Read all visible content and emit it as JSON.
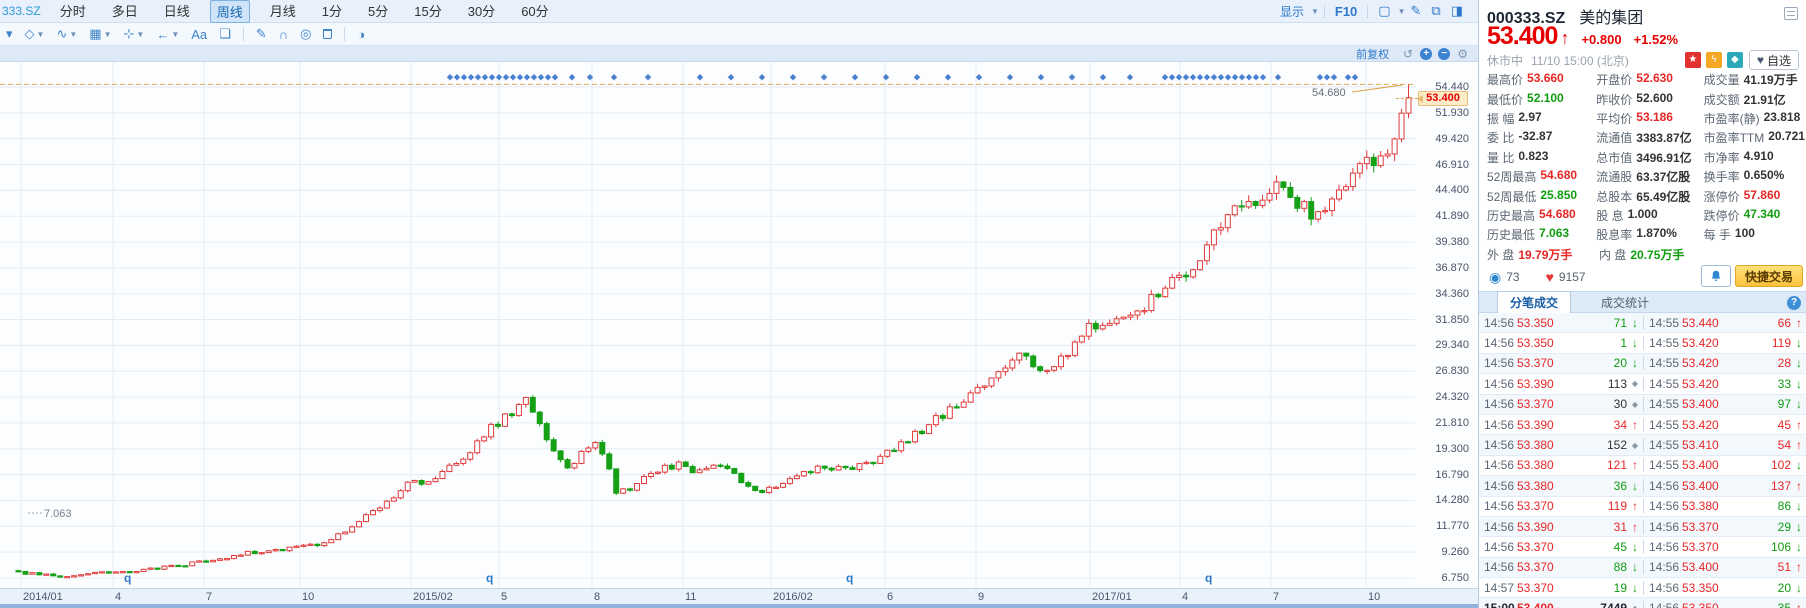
{
  "toolbar": {
    "code": "333.SZ",
    "periods": [
      {
        "label": "分时",
        "active": false
      },
      {
        "label": "多日",
        "active": false
      },
      {
        "label": "日线",
        "active": false
      },
      {
        "label": "周线",
        "active": true
      },
      {
        "label": "月线",
        "active": false
      },
      {
        "label": "1分",
        "active": false
      },
      {
        "label": "5分",
        "active": false
      },
      {
        "label": "15分",
        "active": false
      },
      {
        "label": "30分",
        "active": false
      },
      {
        "label": "60分",
        "active": false
      }
    ],
    "right": {
      "display_label": "显示",
      "f10_label": "F10"
    }
  },
  "draw_toolbar": {
    "items": [
      {
        "n": "caret-down-icon"
      },
      {
        "n": "polygon-tool-icon",
        "c": true
      },
      {
        "n": "wave-tool-icon",
        "c": true
      },
      {
        "n": "chart-box-icon",
        "c": true
      },
      {
        "n": "crosshair-icon",
        "c": true
      },
      {
        "n": "arrow-left-icon",
        "c": true
      },
      {
        "n": "text-tool-icon"
      },
      {
        "n": "comment-icon"
      },
      {
        "sep": true
      },
      {
        "n": "pen-icon"
      },
      {
        "n": "magnet-icon"
      },
      {
        "n": "target-icon"
      },
      {
        "n": "trash-icon"
      },
      {
        "sep": true
      },
      {
        "n": "contrast-icon"
      }
    ]
  },
  "chart": {
    "adjust_label": "前复权",
    "price_tag": "53.400",
    "high_line_label": "54.680",
    "low_label": "7.063",
    "q_marker_label": "q",
    "q_marker_x": [
      128,
      490,
      850,
      1209
    ],
    "y_axis_labels": [
      "54.440",
      "51.930",
      "49.420",
      "46.910",
      "44.400",
      "41.890",
      "39.380",
      "36.870",
      "34.360",
      "31.850",
      "29.340",
      "26.830",
      "24.320",
      "21.810",
      "19.300",
      "16.790",
      "14.280",
      "11.770",
      "9.260",
      "6.750"
    ],
    "x_axis_ticks": [
      {
        "label": "2014/01",
        "x": 21
      },
      {
        "label": "4",
        "x": 113
      },
      {
        "label": "7",
        "x": 204
      },
      {
        "label": "10",
        "x": 300
      },
      {
        "label": "2015/02",
        "x": 411
      },
      {
        "label": "5",
        "x": 499
      },
      {
        "label": "8",
        "x": 592
      },
      {
        "label": "11",
        "x": 683
      },
      {
        "label": "2016/02",
        "x": 771
      },
      {
        "label": "6",
        "x": 885
      },
      {
        "label": "9",
        "x": 976
      },
      {
        "label": "2017/01",
        "x": 1090
      },
      {
        "label": "4",
        "x": 1180
      },
      {
        "label": "7",
        "x": 1271
      },
      {
        "label": "10",
        "x": 1366
      }
    ],
    "diamond_x": [
      450,
      457,
      464,
      471,
      478,
      485,
      492,
      499,
      506,
      513,
      520,
      527,
      534,
      541,
      548,
      555,
      572,
      590,
      614,
      648,
      700,
      731,
      762,
      793,
      824,
      855,
      886,
      917,
      948,
      979,
      1010,
      1041,
      1072,
      1103,
      1130,
      1165,
      1172,
      1179,
      1186,
      1193,
      1200,
      1207,
      1214,
      1221,
      1228,
      1235,
      1242,
      1249,
      1256,
      1263,
      1278,
      1320,
      1327,
      1334,
      1348,
      1355
    ]
  },
  "chart_data": {
    "type": "candlestick",
    "symbol": "000333.SZ",
    "name": "美的集团",
    "period": "weekly",
    "title": "",
    "x_range": [
      "2014/01",
      "2017/11"
    ],
    "price_axis": {
      "min": 6.75,
      "max": 54.44,
      "step": 2.51
    },
    "historic_high": 54.68,
    "historic_low": 7.063,
    "last_close": 53.4,
    "up_color": "#e23b3b",
    "down_color": "#16a016",
    "weekly_close_anchors": [
      [
        0,
        7.3
      ],
      [
        3,
        7.1
      ],
      [
        6,
        6.95
      ],
      [
        9,
        7.05
      ],
      [
        13,
        7.3
      ],
      [
        17,
        7.5
      ],
      [
        21,
        7.8
      ],
      [
        26,
        8.3
      ],
      [
        30,
        8.8
      ],
      [
        34,
        9.3
      ],
      [
        39,
        9.7
      ],
      [
        43,
        10.1
      ],
      [
        46,
        11.0
      ],
      [
        49,
        12.3
      ],
      [
        52,
        13.6
      ],
      [
        54,
        14.8
      ],
      [
        56,
        16.2
      ],
      [
        58,
        15.9
      ],
      [
        60,
        16.4
      ],
      [
        62,
        17.4
      ],
      [
        64,
        18.4
      ],
      [
        66,
        19.8
      ],
      [
        68,
        21.3
      ],
      [
        70,
        22.4
      ],
      [
        72,
        23.4
      ],
      [
        73,
        24.3
      ],
      [
        75,
        21.8
      ],
      [
        77,
        19.4
      ],
      [
        79,
        17.2
      ],
      [
        81,
        18.8
      ],
      [
        83,
        19.8
      ],
      [
        85,
        17.6
      ],
      [
        86,
        14.8
      ],
      [
        88,
        15.6
      ],
      [
        90,
        16.6
      ],
      [
        92,
        17.3
      ],
      [
        95,
        17.8
      ],
      [
        98,
        17.1
      ],
      [
        101,
        17.7
      ],
      [
        104,
        16.1
      ],
      [
        106,
        15.1
      ],
      [
        108,
        15.6
      ],
      [
        111,
        16.4
      ],
      [
        114,
        17.2
      ],
      [
        117,
        17.6
      ],
      [
        120,
        17.4
      ],
      [
        123,
        18.1
      ],
      [
        126,
        19.3
      ],
      [
        129,
        20.6
      ],
      [
        132,
        22.3
      ],
      [
        135,
        23.3
      ],
      [
        138,
        25.3
      ],
      [
        141,
        26.9
      ],
      [
        144,
        28.4
      ],
      [
        146,
        27.4
      ],
      [
        148,
        27.1
      ],
      [
        150,
        28.1
      ],
      [
        152,
        29.4
      ],
      [
        154,
        30.9
      ],
      [
        156,
        31.9
      ],
      [
        158,
        31.4
      ],
      [
        160,
        32.4
      ],
      [
        162,
        33.4
      ],
      [
        164,
        34.4
      ],
      [
        166,
        35.4
      ],
      [
        168,
        36.6
      ],
      [
        170,
        38.1
      ],
      [
        172,
        39.9
      ],
      [
        174,
        41.9
      ],
      [
        176,
        43.4
      ],
      [
        178,
        42.4
      ],
      [
        180,
        44.1
      ],
      [
        182,
        45.4
      ],
      [
        184,
        43.4
      ],
      [
        186,
        41.6
      ],
      [
        188,
        42.6
      ],
      [
        190,
        44.4
      ],
      [
        192,
        46.4
      ],
      [
        194,
        47.9
      ],
      [
        196,
        46.9
      ],
      [
        198,
        49.4
      ],
      [
        199,
        51.9
      ],
      [
        200,
        53.4
      ]
    ]
  },
  "quote": {
    "code": "000333.SZ",
    "name": "美的集团",
    "price": "53.400",
    "arrow": "↑",
    "change": "+0.800",
    "change_pct": "+1.52%",
    "status": "休市中",
    "datetime": "11/10 15:00 (北京)",
    "badges": [
      {
        "icon": "cn-flag-icon",
        "bg": "#e03030"
      },
      {
        "icon": "hot-rank-icon",
        "bg": "#f5a623"
      },
      {
        "icon": "tag-icon",
        "bg": "#2ca8b8"
      }
    ],
    "watch_button": "自选",
    "stats_rows": [
      [
        {
          "l": "最高价",
          "v": "53.660",
          "c": "r"
        },
        {
          "l": "开盘价",
          "v": "52.630",
          "c": "r"
        },
        {
          "l": "成交量",
          "v": "41.19万手",
          "c": "d"
        }
      ],
      [
        {
          "l": "最低价",
          "v": "52.100",
          "c": "g"
        },
        {
          "l": "昨收价",
          "v": "52.600",
          "c": "d"
        },
        {
          "l": "成交额",
          "v": "21.91亿",
          "c": "d"
        }
      ],
      [
        {
          "l": "振 幅",
          "v": "2.97",
          "c": "d"
        },
        {
          "l": "平均价",
          "v": "53.186",
          "c": "r"
        },
        {
          "l": "市盈率(静)",
          "v": "23.818",
          "c": "d"
        }
      ],
      [
        {
          "l": "委 比",
          "v": "-32.87",
          "c": "d"
        },
        {
          "l": "流通值",
          "v": "3383.87亿",
          "c": "d"
        },
        {
          "l": "市盈率TTM",
          "v": "20.721",
          "c": "d"
        }
      ],
      [
        {
          "l": "量 比",
          "v": "0.823",
          "c": "d"
        },
        {
          "l": "总市值",
          "v": "3496.91亿",
          "c": "d"
        },
        {
          "l": "市净率",
          "v": "4.910",
          "c": "d"
        }
      ],
      [
        {
          "l": "52周最高",
          "v": "54.680",
          "c": "r"
        },
        {
          "l": "流通股",
          "v": "63.37亿股",
          "c": "d"
        },
        {
          "l": "换手率",
          "v": "0.650%",
          "c": "d"
        }
      ],
      [
        {
          "l": "52周最低",
          "v": "25.850",
          "c": "g"
        },
        {
          "l": "总股本",
          "v": "65.49亿股",
          "c": "d"
        },
        {
          "l": "涨停价",
          "v": "57.860",
          "c": "r"
        }
      ],
      [
        {
          "l": "历史最高",
          "v": "54.680",
          "c": "r"
        },
        {
          "l": "股 息",
          "v": "1.000",
          "c": "d"
        },
        {
          "l": "跌停价",
          "v": "47.340",
          "c": "g"
        }
      ],
      [
        {
          "l": "历史最低",
          "v": "7.063",
          "c": "g"
        },
        {
          "l": "股息率",
          "v": "1.870%",
          "c": "d"
        },
        {
          "l": "每 手",
          "v": "100",
          "c": "d"
        }
      ],
      [
        {
          "l": "外 盘",
          "v": "19.79万手",
          "c": "r"
        },
        {
          "l": "内 盘",
          "v": "20.75万手",
          "c": "g"
        }
      ]
    ],
    "watch_count": "73",
    "like_count": "9157",
    "quick_trade_label": "快捷交易",
    "tabs": [
      {
        "label": "分笔成交",
        "active": true
      },
      {
        "label": "成交统计",
        "active": false
      }
    ],
    "trades_left": [
      {
        "t": "14:56",
        "p": "53.350",
        "v": "71",
        "a": "d",
        "vc": "g"
      },
      {
        "t": "14:56",
        "p": "53.350",
        "v": "1",
        "a": "d",
        "vc": "g"
      },
      {
        "t": "14:56",
        "p": "53.370",
        "v": "20",
        "a": "d",
        "vc": "g"
      },
      {
        "t": "14:56",
        "p": "53.390",
        "v": "113",
        "a": "f",
        "vc": "d"
      },
      {
        "t": "14:56",
        "p": "53.370",
        "v": "30",
        "a": "f",
        "vc": "d"
      },
      {
        "t": "14:56",
        "p": "53.390",
        "v": "34",
        "a": "u",
        "vc": "r"
      },
      {
        "t": "14:56",
        "p": "53.380",
        "v": "152",
        "a": "f",
        "vc": "d"
      },
      {
        "t": "14:56",
        "p": "53.380",
        "v": "121",
        "a": "u",
        "vc": "r"
      },
      {
        "t": "14:56",
        "p": "53.380",
        "v": "36",
        "a": "d",
        "vc": "g"
      },
      {
        "t": "14:56",
        "p": "53.370",
        "v": "119",
        "a": "u",
        "vc": "r"
      },
      {
        "t": "14:56",
        "p": "53.390",
        "v": "31",
        "a": "u",
        "vc": "r"
      },
      {
        "t": "14:56",
        "p": "53.370",
        "v": "45",
        "a": "d",
        "vc": "g"
      },
      {
        "t": "14:56",
        "p": "53.370",
        "v": "88",
        "a": "d",
        "vc": "g"
      },
      {
        "t": "14:57",
        "p": "53.370",
        "v": "19",
        "a": "d",
        "vc": "g"
      },
      {
        "t": "15:00",
        "p": "53.400",
        "v": "7449",
        "a": "f",
        "vc": "d",
        "b": true
      }
    ],
    "trades_right": [
      {
        "t": "14:55",
        "p": "53.440",
        "v": "66",
        "a": "u",
        "vc": "r"
      },
      {
        "t": "14:55",
        "p": "53.420",
        "v": "119",
        "a": "d",
        "vc": "r"
      },
      {
        "t": "14:55",
        "p": "53.420",
        "v": "28",
        "a": "d",
        "vc": "r"
      },
      {
        "t": "14:55",
        "p": "53.420",
        "v": "33",
        "a": "d",
        "vc": "g"
      },
      {
        "t": "14:55",
        "p": "53.400",
        "v": "97",
        "a": "d",
        "vc": "g"
      },
      {
        "t": "14:55",
        "p": "53.420",
        "v": "45",
        "a": "u",
        "vc": "r"
      },
      {
        "t": "14:55",
        "p": "53.410",
        "v": "54",
        "a": "u",
        "vc": "r"
      },
      {
        "t": "14:55",
        "p": "53.400",
        "v": "102",
        "a": "d",
        "vc": "r"
      },
      {
        "t": "14:56",
        "p": "53.400",
        "v": "137",
        "a": "u",
        "vc": "r"
      },
      {
        "t": "14:56",
        "p": "53.380",
        "v": "86",
        "a": "d",
        "vc": "g"
      },
      {
        "t": "14:56",
        "p": "53.370",
        "v": "29",
        "a": "d",
        "vc": "g"
      },
      {
        "t": "14:56",
        "p": "53.370",
        "v": "106",
        "a": "d",
        "vc": "g"
      },
      {
        "t": "14:56",
        "p": "53.400",
        "v": "51",
        "a": "u",
        "vc": "r"
      },
      {
        "t": "14:56",
        "p": "53.350",
        "v": "20",
        "a": "d",
        "vc": "g"
      },
      {
        "t": "14:56",
        "p": "53.350",
        "v": "35",
        "a": "u",
        "vc": "g"
      }
    ]
  }
}
